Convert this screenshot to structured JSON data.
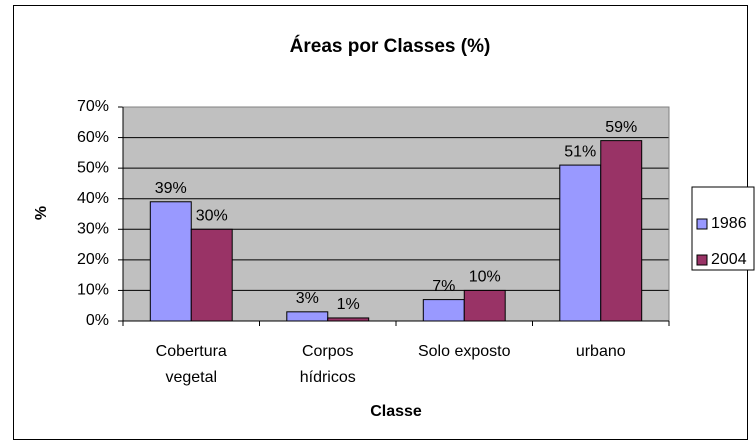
{
  "chart_data": {
    "type": "bar",
    "title": "Áreas por Classes (%)",
    "x_label": "Classe",
    "y_label": "%",
    "categories": [
      "Cobertura vegetal",
      "Corpos hídricos",
      "Solo exposto",
      "urbano"
    ],
    "series": [
      {
        "name": "1986",
        "color": "#9999ff",
        "values": [
          39,
          3,
          7,
          51
        ],
        "value_labels": [
          "39%",
          "3%",
          "7%",
          "51%"
        ]
      },
      {
        "name": "2004",
        "color": "#993366",
        "values": [
          30,
          1,
          10,
          59
        ],
        "value_labels": [
          "30%",
          "1%",
          "10%",
          "59%"
        ]
      }
    ],
    "ylim": [
      0,
      70
    ],
    "yticks": [
      {
        "value": 0,
        "label": "0%"
      },
      {
        "value": 10,
        "label": "10%"
      },
      {
        "value": 20,
        "label": "20%"
      },
      {
        "value": 30,
        "label": "30%"
      },
      {
        "value": 40,
        "label": "40%"
      },
      {
        "value": 50,
        "label": "50%"
      },
      {
        "value": 60,
        "label": "60%"
      },
      {
        "value": 70,
        "label": "70%"
      }
    ],
    "grid": true,
    "legend": "right",
    "plot_background": "#c0c0c0"
  }
}
